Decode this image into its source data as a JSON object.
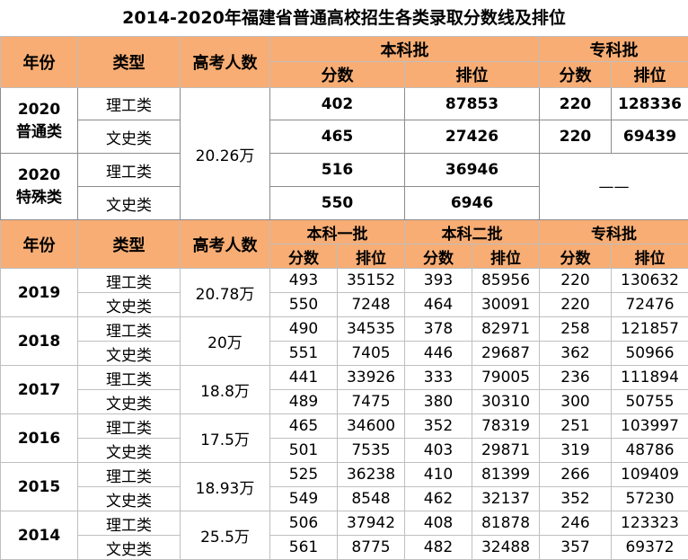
{
  "title": "2014-2020年福建省普通高校招生各类录取分数线及排位",
  "header1": {
    "year": "年份",
    "type": "类型",
    "candidates": "高考人数",
    "bachelor": "本科批",
    "junior": "专科批",
    "score": "分数",
    "rank": "排位"
  },
  "section2020": {
    "normal_label_1": "2020",
    "normal_label_2": "普通类",
    "special_label_1": "2020",
    "special_label_2": "特殊类",
    "candidates": "20.26万",
    "dash": "——",
    "rows": [
      {
        "type": "理工类",
        "b_score": "402",
        "b_rank": "87853",
        "j_score": "220",
        "j_rank": "128336"
      },
      {
        "type": "文史类",
        "b_score": "465",
        "b_rank": "27426",
        "j_score": "220",
        "j_rank": "69439"
      },
      {
        "type": "理工类",
        "b_score": "516",
        "b_rank": "36946"
      },
      {
        "type": "文史类",
        "b_score": "550",
        "b_rank": "6946"
      }
    ]
  },
  "header2": {
    "year": "年份",
    "type": "类型",
    "candidates": "高考人数",
    "first": "本科一批",
    "second": "本科二批",
    "junior": "专科批",
    "score": "分数",
    "rank": "排位"
  },
  "years": [
    {
      "year": "2019",
      "candidates": "20.78万",
      "rows": [
        {
          "type": "理工类",
          "v": [
            "493",
            "35152",
            "393",
            "85956",
            "220",
            "130632"
          ]
        },
        {
          "type": "文史类",
          "v": [
            "550",
            "7248",
            "464",
            "30091",
            "220",
            "72476"
          ]
        }
      ]
    },
    {
      "year": "2018",
      "candidates": "20万",
      "rows": [
        {
          "type": "理工类",
          "v": [
            "490",
            "34535",
            "378",
            "82971",
            "258",
            "121857"
          ]
        },
        {
          "type": "文史类",
          "v": [
            "551",
            "7405",
            "446",
            "29687",
            "362",
            "50966"
          ]
        }
      ]
    },
    {
      "year": "2017",
      "candidates": "18.8万",
      "rows": [
        {
          "type": "理工类",
          "v": [
            "441",
            "33926",
            "333",
            "79005",
            "236",
            "111894"
          ]
        },
        {
          "type": "文史类",
          "v": [
            "489",
            "7475",
            "380",
            "30310",
            "300",
            "50755"
          ]
        }
      ]
    },
    {
      "year": "2016",
      "candidates": "17.5万",
      "rows": [
        {
          "type": "理工类",
          "v": [
            "465",
            "34600",
            "352",
            "78319",
            "251",
            "103997"
          ]
        },
        {
          "type": "文史类",
          "v": [
            "501",
            "7535",
            "403",
            "29871",
            "319",
            "48786"
          ]
        }
      ]
    },
    {
      "year": "2015",
      "candidates": "18.93万",
      "rows": [
        {
          "type": "理工类",
          "v": [
            "525",
            "36238",
            "410",
            "81399",
            "266",
            "109409"
          ]
        },
        {
          "type": "文史类",
          "v": [
            "549",
            "8548",
            "462",
            "32137",
            "352",
            "57230"
          ]
        }
      ]
    },
    {
      "year": "2014",
      "candidates": "25.5万",
      "rows": [
        {
          "type": "理工类",
          "v": [
            "506",
            "37942",
            "408",
            "81878",
            "246",
            "123323"
          ]
        },
        {
          "type": "文史类",
          "v": [
            "561",
            "8775",
            "482",
            "32488",
            "357",
            "69372"
          ]
        }
      ]
    }
  ]
}
